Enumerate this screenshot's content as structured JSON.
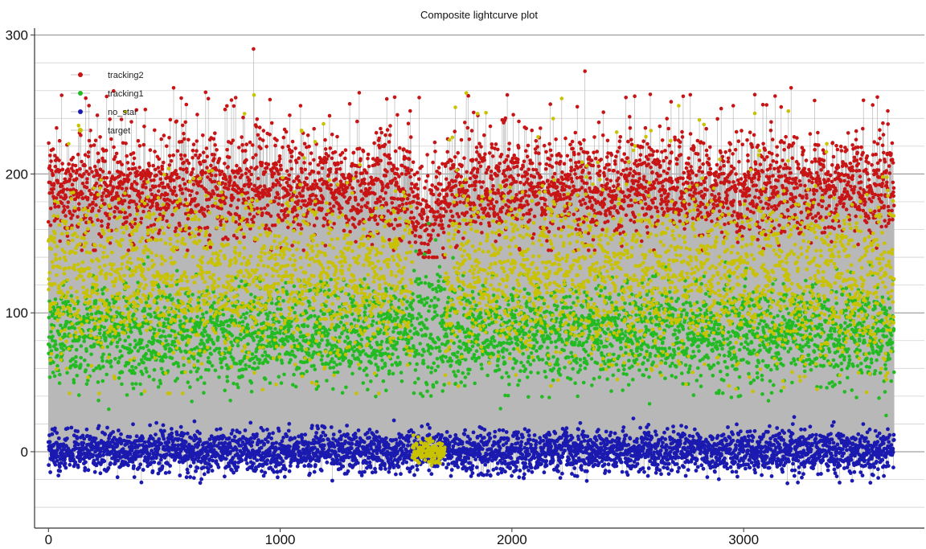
{
  "chart_data": {
    "type": "scatter",
    "title": "Composite lightcurve plot",
    "xlabel": "",
    "ylabel": "",
    "xlim": [
      -60,
      3780
    ],
    "ylim": [
      -55,
      305
    ],
    "x_ticks": [
      0,
      1000,
      2000,
      3000
    ],
    "y_ticks": [
      0,
      100,
      200,
      300
    ],
    "grid": true,
    "legend": "top-left",
    "point_count": 3650,
    "dropout_x_range": [
      1570,
      1710
    ],
    "series": [
      {
        "name": "tracking2",
        "color": "#c81414",
        "typical_y_range": [
          150,
          235
        ],
        "max_y": 290,
        "peaks": [
          {
            "x": 885,
            "y": 290
          },
          {
            "x": 2315,
            "y": 274
          },
          {
            "x": 540,
            "y": 262
          },
          {
            "x": 3205,
            "y": 262
          },
          {
            "x": 595,
            "y": 250
          },
          {
            "x": 770,
            "y": 249
          },
          {
            "x": 1460,
            "y": 254
          },
          {
            "x": 1600,
            "y": 255
          },
          {
            "x": 2530,
            "y": 256
          },
          {
            "x": 2770,
            "y": 257
          }
        ]
      },
      {
        "name": "tracking1",
        "color": "#22bb22",
        "typical_y_range": [
          40,
          120
        ],
        "min_y": 22
      },
      {
        "name": "no_star",
        "color": "#1a1ab0",
        "typical_y_range": [
          -20,
          20
        ],
        "min_y": -37,
        "max_y": 25
      },
      {
        "name": "target",
        "color": "#c8c200",
        "typical_y_range": [
          60,
          200
        ],
        "max_y": 272,
        "dropout_value": 0
      }
    ]
  }
}
